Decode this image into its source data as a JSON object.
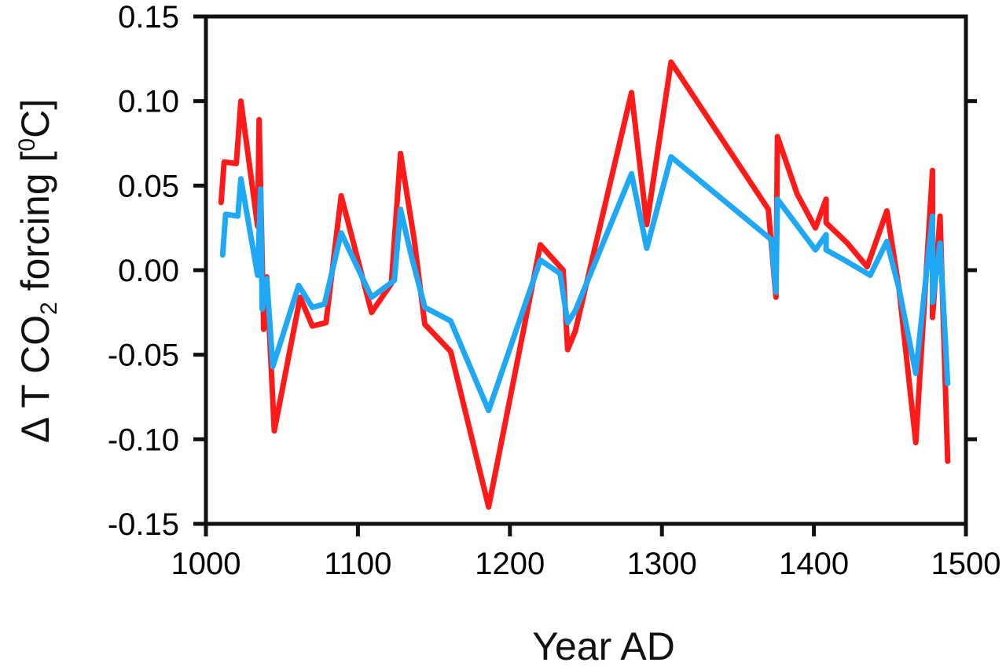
{
  "chart_data": {
    "type": "line",
    "title": "",
    "xlabel": "Year AD",
    "ylabel": {
      "prefix": "Δ T CO",
      "sub": "2",
      "mid": " forcing [",
      "sup": "0",
      "suffix": "C]"
    },
    "xlim": [
      1000,
      1500
    ],
    "ylim": [
      -0.15,
      0.15
    ],
    "x_ticks": [
      1000,
      1100,
      1200,
      1300,
      1400,
      1500
    ],
    "x_tick_labels": [
      "1000",
      "1100",
      "1200",
      "1300",
      "1400",
      "1500"
    ],
    "y_ticks": [
      0.15,
      0.1,
      0.05,
      0.0,
      -0.05,
      -0.1,
      -0.15
    ],
    "y_tick_labels": [
      "0.15",
      "0.10",
      "0.05",
      "0.00",
      "-0.05",
      "-0.10",
      "-0.15"
    ],
    "right_ticks": [
      0.1,
      0.0,
      -0.1
    ],
    "grid": false,
    "series": [
      {
        "name": "red",
        "color": "#ff1a1a",
        "x": [
          1010,
          1012,
          1020,
          1023,
          1034,
          1035,
          1038,
          1040,
          1045,
          1062,
          1070,
          1079,
          1089,
          1109,
          1122,
          1128,
          1137,
          1144,
          1161,
          1186,
          1220,
          1235,
          1238,
          1243,
          1280,
          1290,
          1306,
          1370,
          1375,
          1376,
          1389,
          1401,
          1408,
          1408,
          1422,
          1435,
          1448,
          1456,
          1467,
          1478,
          1478,
          1483,
          1488
        ],
        "y": [
          0.04,
          0.064,
          0.063,
          0.1,
          0.026,
          0.089,
          -0.035,
          -0.004,
          -0.095,
          -0.016,
          -0.033,
          -0.031,
          0.044,
          -0.025,
          -0.008,
          0.069,
          0.018,
          -0.032,
          -0.048,
          -0.14,
          0.015,
          0.0,
          -0.047,
          -0.036,
          0.105,
          0.027,
          0.123,
          0.036,
          -0.016,
          0.079,
          0.045,
          0.025,
          0.042,
          0.028,
          0.016,
          0.002,
          0.035,
          -0.011,
          -0.102,
          0.059,
          -0.028,
          0.032,
          -0.113
        ]
      },
      {
        "name": "blue",
        "color": "#1fa8f5",
        "x": [
          1011,
          1013,
          1021,
          1023,
          1034,
          1036,
          1037,
          1040,
          1044,
          1061,
          1070,
          1078,
          1089,
          1109,
          1124,
          1128,
          1135,
          1144,
          1161,
          1186,
          1220,
          1233,
          1238,
          1243,
          1280,
          1290,
          1306,
          1372,
          1375,
          1376,
          1401,
          1408,
          1408,
          1420,
          1437,
          1448,
          1456,
          1467,
          1478,
          1478,
          1483,
          1488
        ],
        "y": [
          0.009,
          0.033,
          0.032,
          0.054,
          -0.003,
          0.048,
          -0.023,
          -0.005,
          -0.057,
          -0.009,
          -0.022,
          -0.02,
          0.022,
          -0.016,
          -0.006,
          0.036,
          0.009,
          -0.022,
          -0.03,
          -0.083,
          0.006,
          -0.002,
          -0.031,
          -0.024,
          0.057,
          0.013,
          0.067,
          0.018,
          -0.013,
          0.042,
          0.012,
          0.021,
          0.012,
          0.006,
          -0.003,
          0.017,
          -0.011,
          -0.061,
          0.032,
          -0.019,
          0.016,
          -0.067
        ]
      }
    ]
  }
}
